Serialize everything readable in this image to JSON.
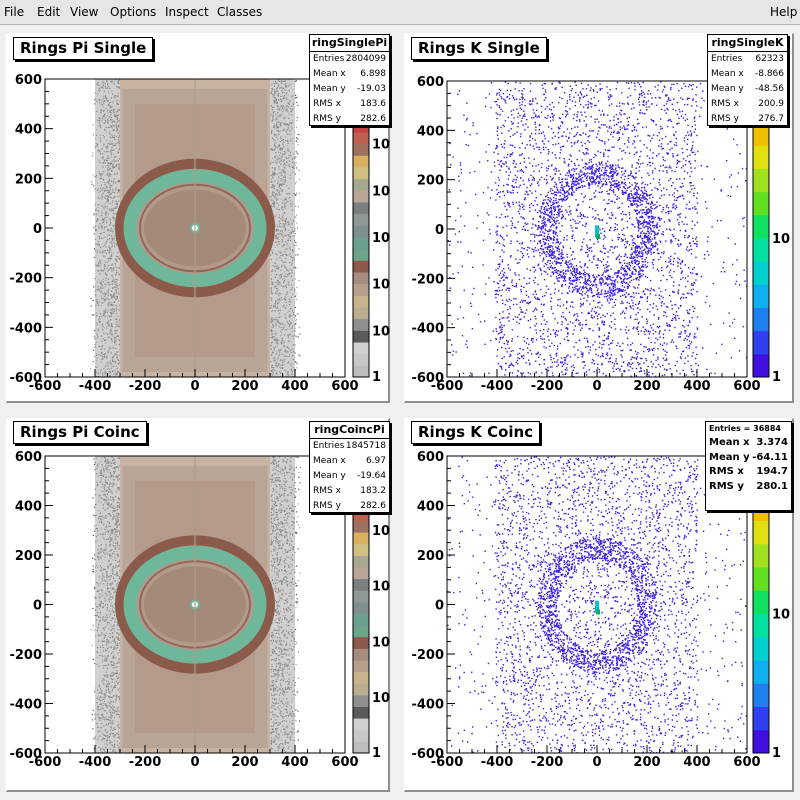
{
  "menu": {
    "file": "File",
    "edit": "Edit",
    "view": "View",
    "options": "Options",
    "inspect": "Inspect",
    "classes": "Classes",
    "help": "Help"
  },
  "pads": [
    {
      "title": "Rings Pi Single",
      "stats_name": "ringSinglePi",
      "stats": [
        {
          "label": "Entries",
          "value": "2804099"
        },
        {
          "label": "Mean x",
          "value": "6.898"
        },
        {
          "label": "Mean y",
          "value": "-19.03"
        },
        {
          "label": "RMS x",
          "value": "183.6"
        },
        {
          "label": "RMS y",
          "value": "282.6"
        }
      ],
      "palette_labels": [
        "10",
        "10",
        "10",
        "10",
        "10",
        "1"
      ],
      "style": "pi"
    },
    {
      "title": "Rings K Single",
      "stats_name": "ringSingleK",
      "stats": [
        {
          "label": "Entries",
          "value": "62323"
        },
        {
          "label": "Mean x",
          "value": "-8.866"
        },
        {
          "label": "Mean y",
          "value": "-48.56"
        },
        {
          "label": "RMS x",
          "value": "200.9"
        },
        {
          "label": "RMS y",
          "value": "276.7"
        }
      ],
      "palette_labels": [
        "10",
        "1"
      ],
      "style": "k"
    },
    {
      "title": "Rings Pi Coinc",
      "stats_name": "ringCoincPi",
      "stats": [
        {
          "label": "Entries",
          "value": "1845718"
        },
        {
          "label": "Mean x",
          "value": "6.97"
        },
        {
          "label": "Mean y",
          "value": "-19.64"
        },
        {
          "label": "RMS x",
          "value": "183.2"
        },
        {
          "label": "RMS y",
          "value": "282.6"
        }
      ],
      "palette_labels": [
        "10",
        "10",
        "10",
        "10",
        "1"
      ],
      "style": "pi"
    },
    {
      "title": "Rings K Coinc",
      "stats_name": "",
      "stats_head": "Entries = 36884",
      "stats": [
        {
          "label": "Mean x",
          "value": "3.374"
        },
        {
          "label": "Mean y",
          "value": "-64.11"
        },
        {
          "label": "RMS x",
          "value": "194.7"
        },
        {
          "label": "RMS y",
          "value": "280.1"
        }
      ],
      "palette_labels": [
        "10",
        "1"
      ],
      "style": "k"
    }
  ],
  "axis_ticks": [
    "-600",
    "-400",
    "-200",
    "0",
    "200",
    "400",
    "600"
  ],
  "colors": {
    "pi_background": "#b9a596",
    "pi_ring": "#6fb79a",
    "pi_ring_edge": "#8a5a4a",
    "k_points": "#3a1fe0",
    "k_center": "#00c8c8"
  },
  "chart_data": [
    {
      "type": "heatmap",
      "title": "Rings Pi Single",
      "xlim": [
        -600,
        600
      ],
      "ylim": [
        -600,
        600
      ],
      "x_ticks": [
        -600,
        -400,
        -200,
        0,
        200,
        400,
        600
      ],
      "y_ticks": [
        -600,
        -400,
        -200,
        0,
        200,
        400,
        600
      ],
      "z_scale": "log",
      "ring": {
        "center": [
          0,
          0
        ],
        "radius": 220
      }
    },
    {
      "type": "scatter",
      "title": "Rings K Single",
      "xlim": [
        -600,
        600
      ],
      "ylim": [
        -600,
        600
      ],
      "x_ticks": [
        -600,
        -400,
        -200,
        0,
        200,
        400,
        600
      ],
      "y_ticks": [
        -600,
        -400,
        -200,
        0,
        200,
        400,
        600
      ],
      "z_scale": "log"
    },
    {
      "type": "heatmap",
      "title": "Rings Pi Coinc",
      "xlim": [
        -600,
        600
      ],
      "ylim": [
        -600,
        600
      ],
      "x_ticks": [
        -600,
        -400,
        -200,
        0,
        200,
        400,
        600
      ],
      "y_ticks": [
        -600,
        -400,
        -200,
        0,
        200,
        400,
        600
      ],
      "z_scale": "log",
      "ring": {
        "center": [
          0,
          0
        ],
        "radius": 220
      }
    },
    {
      "type": "scatter",
      "title": "Rings K Coinc",
      "xlim": [
        -600,
        600
      ],
      "ylim": [
        -600,
        600
      ],
      "x_ticks": [
        -600,
        -400,
        -200,
        0,
        200,
        400,
        600
      ],
      "y_ticks": [
        -600,
        -400,
        -200,
        0,
        200,
        400,
        600
      ],
      "z_scale": "log"
    }
  ]
}
